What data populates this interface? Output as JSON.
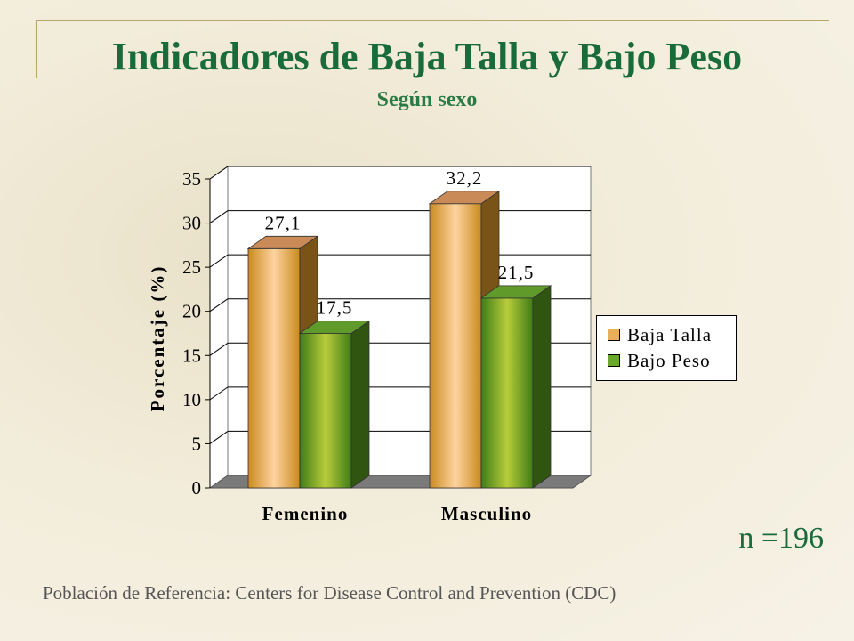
{
  "title": "Indicadores de Baja Talla y Bajo Peso",
  "subtitle": "Según sexo",
  "sample_size": "n =196",
  "footer": "Población de Referencia:  Centers for Disease Control and Prevention (CDC)",
  "colors": {
    "title": "#1a6b3a",
    "baja_talla": "#e8b05a",
    "bajo_peso": "#6aa82c"
  },
  "chart_data": {
    "type": "bar",
    "categories": [
      "Femenino",
      "Masculino"
    ],
    "series": [
      {
        "name": "Baja Talla",
        "values": [
          27.1,
          32.2
        ],
        "labels": [
          "27,1",
          "32,2"
        ]
      },
      {
        "name": "Bajo Peso",
        "values": [
          17.5,
          21.5
        ],
        "labels": [
          "17,5",
          "21,5"
        ]
      }
    ],
    "ylabel": "Porcentaje (%)",
    "ylim": [
      0,
      35
    ],
    "yticks": [
      "0",
      "5",
      "10",
      "15",
      "20",
      "25",
      "30",
      "35"
    ],
    "grid": true,
    "legend": "right"
  }
}
